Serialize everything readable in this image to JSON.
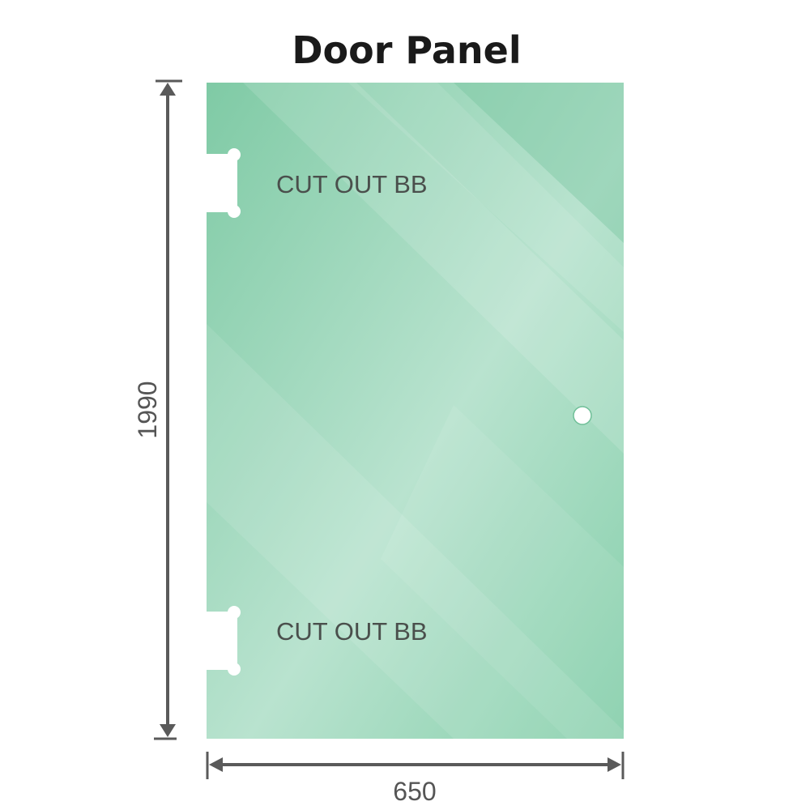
{
  "title": "Door Panel",
  "cutout_top_label": "CUT OUT BB",
  "cutout_bottom_label": "CUT OUT BB",
  "height_dimension": "1990",
  "width_dimension": "650",
  "colors": {
    "glass": "#8fd1b0",
    "glass_dark": "#7cc8a4",
    "dimension_line": "#5a5a5a"
  }
}
